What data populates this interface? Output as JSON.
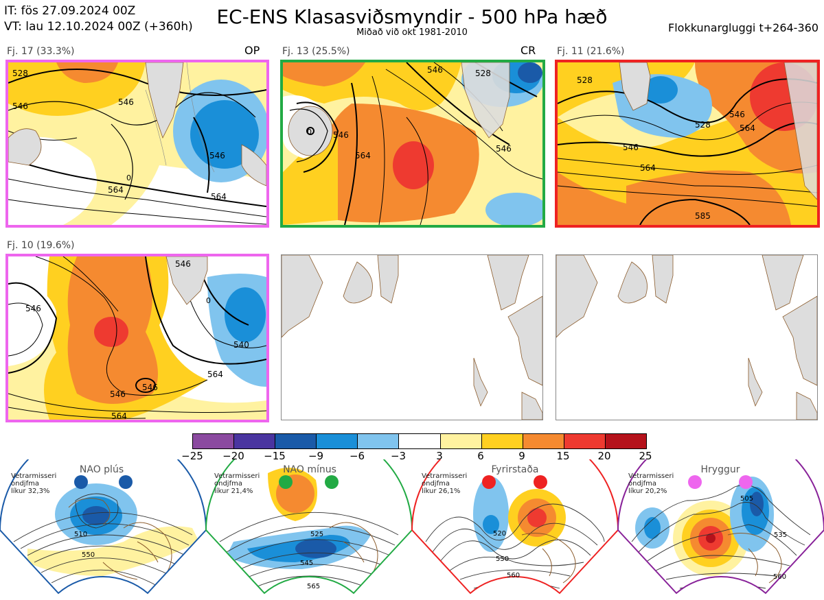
{
  "header": {
    "it_line": "IT: fös 27.09.2024 00Z",
    "vt_line": "VT: lau 12.10.2024 00Z  (+360h)",
    "title": "EC-ENS Klasasviðsmyndir - 500 hPa hæð",
    "subtitle": "Miðað við okt 1981-2010",
    "window": "Flokkunargluggi t+264-360"
  },
  "panels": [
    {
      "label": "Fj. 17 (33.3%)",
      "tag": "OP",
      "border_color": "#ee66ee",
      "contour_labels": [
        "528",
        "546",
        "546",
        "564",
        "564",
        "546",
        "0"
      ]
    },
    {
      "label": "Fj. 13 (25.5%)",
      "tag": "CR",
      "border_color": "#22aa44",
      "contour_labels": [
        "546",
        "564",
        "546",
        "528",
        "546",
        "0"
      ]
    },
    {
      "label": "Fj. 11 (21.6%)",
      "tag": "",
      "border_color": "#ee2222",
      "contour_labels": [
        "528",
        "528",
        "546",
        "546",
        "564",
        "564",
        "585"
      ]
    },
    {
      "label": "Fj. 10 (19.6%)",
      "tag": "",
      "border_color": "#ee66ee",
      "contour_labels": [
        "546",
        "546",
        "540",
        "564",
        "546",
        "546",
        "564",
        "0"
      ]
    }
  ],
  "colorbar": {
    "ticks": [
      "−25",
      "−20",
      "−15",
      "−9",
      "−6",
      "−3",
      "3",
      "6",
      "9",
      "15",
      "20",
      "25"
    ],
    "colors": [
      "#8b4aa0",
      "#4a35a0",
      "#1a5aa8",
      "#1a8fd8",
      "#80c4ee",
      "#ffffff",
      "#fff2a0",
      "#ffd020",
      "#f58a30",
      "#ee3a30",
      "#b5121b"
    ]
  },
  "regimes": [
    {
      "name": "NAO plús",
      "season": "Vetrarmisseri",
      "method": "ondjfma",
      "prob": "líkur 32,3%",
      "color": "#1a5aa8",
      "dot_color": "#1a5aa8",
      "contour_labels": [
        "510",
        "550"
      ]
    },
    {
      "name": "NAO mínus",
      "season": "Vetrarmisseri",
      "method": "ondjfma",
      "prob": "líkur 21,4%",
      "color": "#22aa44",
      "dot_color": "#22aa44",
      "contour_labels": [
        "525",
        "545",
        "565"
      ]
    },
    {
      "name": "Fyrirstaða",
      "season": "Vetrarmisseri",
      "method": "ondjfma",
      "prob": "líkur 26,1%",
      "color": "#ee2222",
      "dot_color": "#ee2222",
      "contour_labels": [
        "520",
        "550",
        "560"
      ]
    },
    {
      "name": "Hryggur",
      "season": "Vetrarmisseri",
      "method": "ondjfma",
      "prob": "líkur 20,2%",
      "color": "#882299",
      "dot_color": "#ee66ee",
      "contour_labels": [
        "505",
        "535",
        "560"
      ]
    }
  ]
}
